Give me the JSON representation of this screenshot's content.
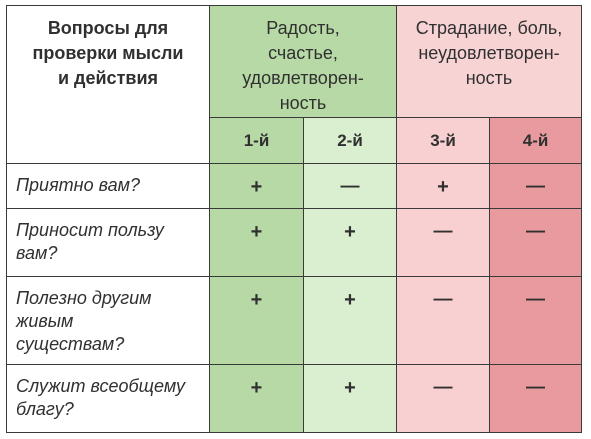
{
  "header": {
    "questions_title": "Вопросы для проверки мысли и действия",
    "joy_title": "Радость, счастье, удовлетворен-ность",
    "pain_title": "Страдание, боль, неудовлетворен-ность",
    "columns": [
      "1-й",
      "2-й",
      "3-й",
      "4-й"
    ]
  },
  "rows": [
    {
      "question": "Приятно вам?",
      "marks": [
        "+",
        "—",
        "+",
        "—"
      ]
    },
    {
      "question": "Приносит пользу вам?",
      "marks": [
        "+",
        "+",
        "—",
        "—"
      ]
    },
    {
      "question": "Полезно другим живым существам?",
      "marks": [
        "+",
        "+",
        "—",
        "—"
      ]
    },
    {
      "question": "Служит всеобщему благу?",
      "marks": [
        "+",
        "+",
        "—",
        "—"
      ]
    }
  ],
  "colors": {
    "joy_header": "#b7d9a6",
    "col1": "#b7d9a6",
    "col2": "#daeed0",
    "pain_header": "#f7d3d3",
    "col3": "#f8d0d1",
    "col4": "#e89a9e"
  }
}
